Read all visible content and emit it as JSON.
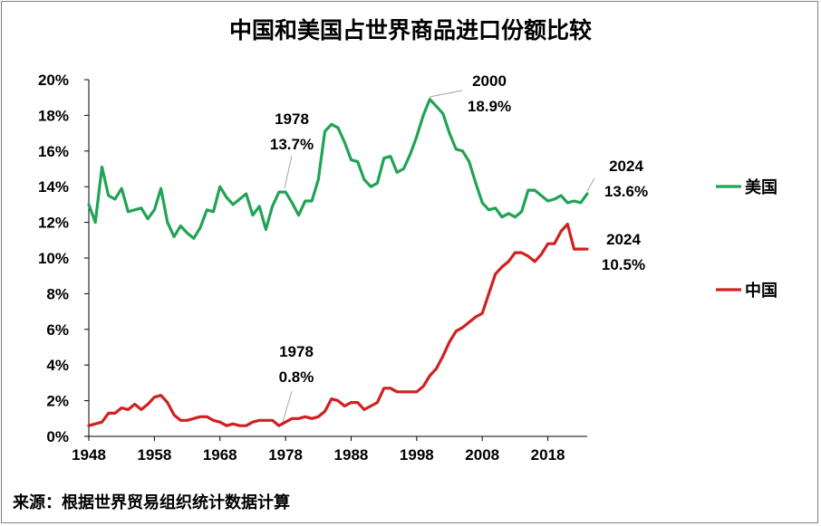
{
  "chart_data": {
    "type": "line",
    "title": "中国和美国占世界商品进口份额比较",
    "source": "来源：根据世界贸易组织统计数据计算",
    "xlabel": "",
    "ylabel": "",
    "xlim": [
      1948,
      2024
    ],
    "ylim": [
      0,
      20
    ],
    "x_ticks": [
      1948,
      1958,
      1968,
      1978,
      1988,
      1998,
      2008,
      2018
    ],
    "x_tick_labels": [
      "1948",
      "1958",
      "1968",
      "1978",
      "1988",
      "1998",
      "2008",
      "2018"
    ],
    "y_ticks": [
      0,
      2,
      4,
      6,
      8,
      10,
      12,
      14,
      16,
      18,
      20
    ],
    "y_tick_labels": [
      "0%",
      "2%",
      "4%",
      "6%",
      "8%",
      "10%",
      "12%",
      "14%",
      "16%",
      "18%",
      "20%"
    ],
    "legend": [
      {
        "name": "美国",
        "color": "#21a354"
      },
      {
        "name": "中国",
        "color": "#d12020"
      }
    ],
    "series": [
      {
        "name": "美国",
        "color": "#21a354",
        "x": [
          1948,
          1949,
          1950,
          1951,
          1952,
          1953,
          1954,
          1955,
          1956,
          1957,
          1958,
          1959,
          1960,
          1961,
          1962,
          1963,
          1964,
          1965,
          1966,
          1967,
          1968,
          1969,
          1970,
          1971,
          1972,
          1973,
          1974,
          1975,
          1976,
          1977,
          1978,
          1979,
          1980,
          1981,
          1982,
          1983,
          1984,
          1985,
          1986,
          1987,
          1988,
          1989,
          1990,
          1991,
          1992,
          1993,
          1994,
          1995,
          1996,
          1997,
          1998,
          1999,
          2000,
          2001,
          2002,
          2003,
          2004,
          2005,
          2006,
          2007,
          2008,
          2009,
          2010,
          2011,
          2012,
          2013,
          2014,
          2015,
          2016,
          2017,
          2018,
          2019,
          2020,
          2021,
          2022,
          2023,
          2024
        ],
        "values": [
          13.0,
          12.0,
          15.1,
          13.5,
          13.3,
          13.9,
          12.6,
          12.7,
          12.8,
          12.2,
          12.7,
          13.9,
          12.0,
          11.2,
          11.8,
          11.4,
          11.1,
          11.7,
          12.7,
          12.6,
          14.0,
          13.4,
          13.0,
          13.3,
          13.6,
          12.4,
          12.9,
          11.6,
          12.9,
          13.7,
          13.7,
          13.1,
          12.4,
          13.2,
          13.2,
          14.4,
          17.1,
          17.5,
          17.3,
          16.5,
          15.5,
          15.4,
          14.4,
          14.0,
          14.2,
          15.6,
          15.7,
          14.8,
          15.0,
          15.8,
          16.8,
          18.0,
          18.9,
          18.5,
          18.1,
          17.0,
          16.1,
          16.0,
          15.4,
          14.2,
          13.1,
          12.7,
          12.8,
          12.3,
          12.5,
          12.3,
          12.6,
          13.8,
          13.8,
          13.5,
          13.2,
          13.3,
          13.5,
          13.1,
          13.2,
          13.1,
          13.6
        ]
      },
      {
        "name": "中国",
        "color": "#d12020",
        "x": [
          1948,
          1949,
          1950,
          1951,
          1952,
          1953,
          1954,
          1955,
          1956,
          1957,
          1958,
          1959,
          1960,
          1961,
          1962,
          1963,
          1964,
          1965,
          1966,
          1967,
          1968,
          1969,
          1970,
          1971,
          1972,
          1973,
          1974,
          1975,
          1976,
          1977,
          1978,
          1979,
          1980,
          1981,
          1982,
          1983,
          1984,
          1985,
          1986,
          1987,
          1988,
          1989,
          1990,
          1991,
          1992,
          1993,
          1994,
          1995,
          1996,
          1997,
          1998,
          1999,
          2000,
          2001,
          2002,
          2003,
          2004,
          2005,
          2006,
          2007,
          2008,
          2009,
          2010,
          2011,
          2012,
          2013,
          2014,
          2015,
          2016,
          2017,
          2018,
          2019,
          2020,
          2021,
          2022,
          2023,
          2024
        ],
        "values": [
          0.6,
          0.7,
          0.8,
          1.3,
          1.3,
          1.6,
          1.5,
          1.8,
          1.5,
          1.8,
          2.2,
          2.3,
          1.9,
          1.2,
          0.9,
          0.9,
          1.0,
          1.1,
          1.1,
          0.9,
          0.8,
          0.6,
          0.7,
          0.6,
          0.6,
          0.8,
          0.9,
          0.9,
          0.9,
          0.6,
          0.8,
          1.0,
          1.0,
          1.1,
          1.0,
          1.1,
          1.4,
          2.1,
          2.0,
          1.7,
          1.9,
          1.9,
          1.5,
          1.7,
          1.9,
          2.7,
          2.7,
          2.5,
          2.5,
          2.5,
          2.5,
          2.8,
          3.4,
          3.8,
          4.5,
          5.3,
          5.9,
          6.1,
          6.4,
          6.7,
          6.9,
          8.0,
          9.1,
          9.5,
          9.8,
          10.3,
          10.3,
          10.1,
          9.8,
          10.2,
          10.8,
          10.8,
          11.5,
          11.9,
          10.5,
          10.5,
          10.5
        ]
      }
    ],
    "annotations": [
      {
        "series": "美国",
        "year_label": "1978",
        "value_label": "13.7%"
      },
      {
        "series": "美国",
        "year_label": "2000",
        "value_label": "18.9%"
      },
      {
        "series": "美国",
        "year_label": "2024",
        "value_label": "13.6%"
      },
      {
        "series": "中国",
        "year_label": "1978",
        "value_label": "0.8%"
      },
      {
        "series": "中国",
        "year_label": "2024",
        "value_label": "10.5%"
      }
    ]
  }
}
